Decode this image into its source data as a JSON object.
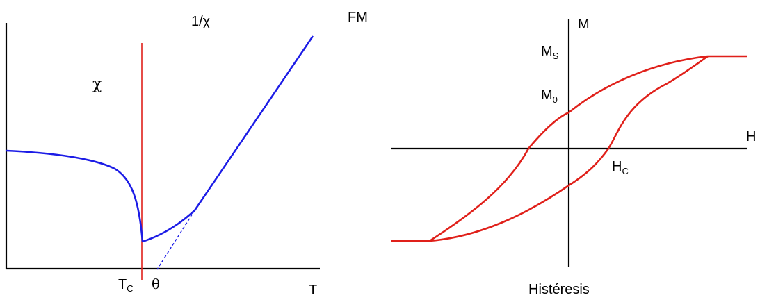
{
  "colors": {
    "axis": "#000000",
    "susceptibility_curve": "#1c1ce6",
    "critical_line": "#e0201a",
    "hysteresis_loop": "#e0201a"
  },
  "left_panel": {
    "label_inverse_chi": "1/χ",
    "label_fm": "FM",
    "label_chi": "χ",
    "label_tc_main": "T",
    "label_tc_sub": "C",
    "label_theta": "θ",
    "label_t_axis": "T"
  },
  "right_panel": {
    "label_m_axis": "M",
    "label_h_axis": "H",
    "label_ms_main": "M",
    "label_ms_sub": "S",
    "label_m0_main": "M",
    "label_m0_sub": "0",
    "label_hc_main": "H",
    "label_hc_sub": "C",
    "caption": "Histéresis"
  }
}
